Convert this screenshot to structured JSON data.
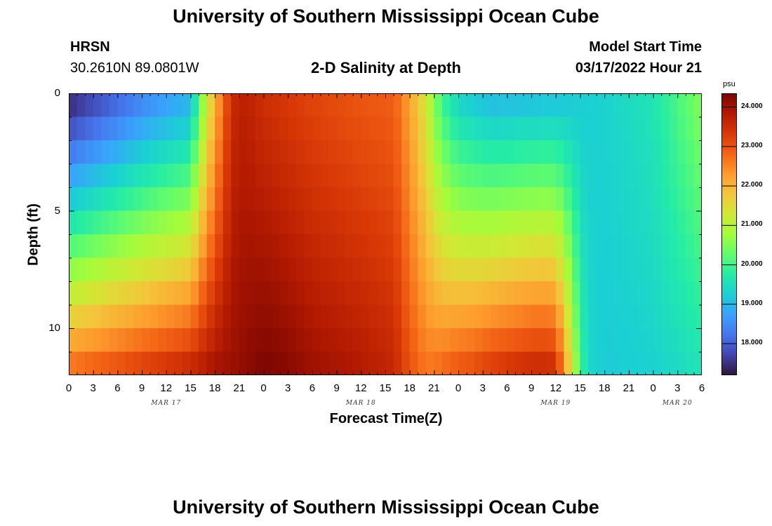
{
  "header": {
    "title": "University of Southern Mississippi Ocean Cube",
    "station": "HRSN",
    "coords": "30.2610N  89.0801W",
    "chart_title": "2-D Salinity at Depth",
    "model_start_label": "Model Start Time",
    "model_start_value": "03/17/2022 Hour 21",
    "bottom_title": "University of Southern Mississippi Ocean Cube"
  },
  "colorbar": {
    "unit": "psu",
    "ticks": [
      "24.000",
      "23.000",
      "22.000",
      "21.000",
      "20.000",
      "19.000",
      "18.000"
    ],
    "min": 17.2,
    "max": 24.35,
    "colors": [
      "#30123b",
      "#4145ab",
      "#4675ed",
      "#39a2fc",
      "#1bcfd4",
      "#24eca6",
      "#61fc6c",
      "#a4fc3b",
      "#d1e834",
      "#f3c63a",
      "#fe9b2d",
      "#f36315",
      "#d93806",
      "#b11901",
      "#7a0402"
    ]
  },
  "chart_data": {
    "type": "heatmap",
    "title": "2-D Salinity at Depth",
    "xlabel": "Forecast Time(Z)",
    "ylabel": "Depth (ft)",
    "units": "psu",
    "x_hours": [
      0,
      78
    ],
    "x_tick_labels": [
      "0",
      "3",
      "6",
      "9",
      "12",
      "15",
      "18",
      "21",
      "0",
      "3",
      "6",
      "9",
      "12",
      "15",
      "18",
      "21",
      "0",
      "3",
      "6",
      "9",
      "12",
      "15",
      "18",
      "21",
      "0",
      "3",
      "6"
    ],
    "x_date_labels": [
      {
        "text": "MAR 17",
        "hour": 12
      },
      {
        "text": "MAR 18",
        "hour": 36
      },
      {
        "text": "MAR 19",
        "hour": 60
      },
      {
        "text": "MAR 20",
        "hour": 75
      }
    ],
    "y_range_ft": [
      0,
      12
    ],
    "y_tick_labels": [
      {
        "text": "0",
        "depth": 0
      },
      {
        "text": "5",
        "depth": 5
      },
      {
        "text": "10",
        "depth": 10
      }
    ],
    "depth_levels_ft": [
      0.5,
      1.5,
      2.5,
      3.5,
      4.5,
      5.5,
      6.5,
      7.5,
      8.5,
      9.5,
      10.5,
      11.5
    ],
    "value_range_psu": [
      17.4,
      24.3
    ],
    "surface_profile_psu": {
      "hours": [
        0,
        10,
        15,
        16,
        17,
        18,
        19,
        20,
        21,
        22,
        23,
        24,
        30,
        36,
        40,
        41,
        42,
        43,
        44,
        45,
        46,
        47,
        48,
        52,
        60,
        66,
        72,
        78
      ],
      "values": [
        17.5,
        18.6,
        19.0,
        20.2,
        21.2,
        22.0,
        22.8,
        23.5,
        23.7,
        23.7,
        23.6,
        23.5,
        23.2,
        23.0,
        22.9,
        22.6,
        22.2,
        21.8,
        21.3,
        20.6,
        20.0,
        19.7,
        19.4,
        19.1,
        19.2,
        19.3,
        19.6,
        20.5
      ]
    },
    "bottom_profile_psu": {
      "hours": [
        0,
        10,
        15,
        18,
        21,
        24,
        27,
        30,
        36,
        40,
        42,
        44,
        46,
        48,
        50,
        52,
        54,
        56,
        58,
        60,
        61,
        62,
        63,
        64,
        66,
        72,
        78
      ],
      "values": [
        22.6,
        23.2,
        23.5,
        23.9,
        24.1,
        24.3,
        24.2,
        24.0,
        23.8,
        23.6,
        23.0,
        22.6,
        22.7,
        22.9,
        23.0,
        23.2,
        23.3,
        23.4,
        23.5,
        23.4,
        22.4,
        21.2,
        20.0,
        19.4,
        19.2,
        19.3,
        19.6
      ]
    }
  }
}
